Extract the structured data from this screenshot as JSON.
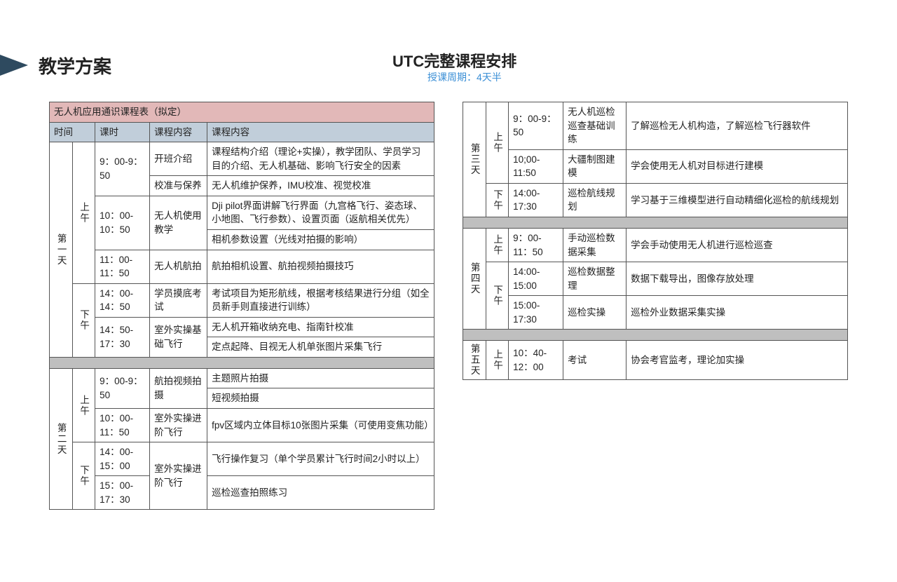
{
  "header": {
    "page_title": "教学方案",
    "main_title": "UTC完整课程安排",
    "sub_title": "授课周期：4天半"
  },
  "colors": {
    "arrow": "#2e4a5f",
    "accent_text": "#3b8fd6",
    "pink_header": "#e2b8b8",
    "blue_header": "#c1ceda",
    "divider": "#bfbfbf",
    "border": "#555555",
    "text": "#222222",
    "bg": "#ffffff"
  },
  "left_table": {
    "title": "无人机应用通识课程表（拟定）",
    "columns": [
      "时间",
      "课时",
      "课程内容",
      "课程内容"
    ]
  },
  "day1": {
    "label": "第一天",
    "am": "上午",
    "pm": "下午",
    "t1": "9：00-9：50",
    "t2": "10：00-10：50",
    "t3": "11：00-11：50",
    "t4": "14：00-14：50",
    "t5": "14：50-17：30",
    "c1": "开班介绍",
    "d1": "课程结构介绍（理论+实操），教学团队、学员学习目的介绍、无人机基础、影响飞行安全的因素",
    "c2": "校准与保养",
    "d2": "无人机维护保养，IMU校准、视觉校准",
    "c3": "无人机使用教学",
    "d3a": "Dji pilot界面讲解飞行界面（九宫格飞行、姿态球、小地图、飞行参数）、设置页面（返航相关优先）",
    "d3b": "相机参数设置（光线对拍摄的影响）",
    "c4": "无人机航拍",
    "d4": "航拍相机设置、航拍视频拍摄技巧",
    "c5": "学员摸底考试",
    "d5": "考试项目为矩形航线，根据考核结果进行分组（如全员新手则直接进行训练）",
    "c6": "室外实操基础飞行",
    "d6a": "无人机开箱收纳充电、指南针校准",
    "d6b": "定点起降、目视无人机单张图片采集飞行"
  },
  "day2": {
    "label": "第二天",
    "am": "上午",
    "pm": "下午",
    "t1": "9：00-9：50",
    "t2": "10：00-11：50",
    "t3": "14：00-15：00",
    "t4": "15：00-17：30",
    "c1": "航拍视频拍摄",
    "d1a": "主题照片拍摄",
    "d1b": "短视频拍摄",
    "c2": "室外实操进阶飞行",
    "d2": "fpv区域内立体目标10张图片采集（可使用变焦功能）",
    "c3": "室外实操进阶飞行",
    "d3a": "飞行操作复习（单个学员累计飞行时间2小时以上）",
    "d3b": "巡检巡查拍照练习"
  },
  "day3": {
    "label": "第三天",
    "am": "上午",
    "pm": "下午",
    "t1": "9：00-9：50",
    "t2": "10;00-11:50",
    "t3": "14:00-17:30",
    "c1": "无人机巡检巡查基础训练",
    "d1": "了解巡检无人机构造，了解巡检飞行器软件",
    "c2": "大疆制图建模",
    "d2": "学会使用无人机对目标进行建模",
    "c3": "巡检航线规划",
    "d3": "学习基于三维模型进行自动精细化巡检的航线规划"
  },
  "day4": {
    "label": "第四天",
    "am": "上午",
    "pm": "下午",
    "t1": "9：00-11：50",
    "t2": "14:00-15:00",
    "t3": "15:00-17:30",
    "c1": "手动巡检数据采集",
    "d1": "学会手动使用无人机进行巡检巡查",
    "c2": "巡检数据整理",
    "d2": "数据下载导出，图像存放处理",
    "c3": "巡检实操",
    "d3": "巡检外业数据采集实操"
  },
  "day5": {
    "label": "第五天",
    "am": "上午",
    "t1": "10：40-12：00",
    "c1": "考试",
    "d1": "协会考官监考，理论加实操"
  }
}
